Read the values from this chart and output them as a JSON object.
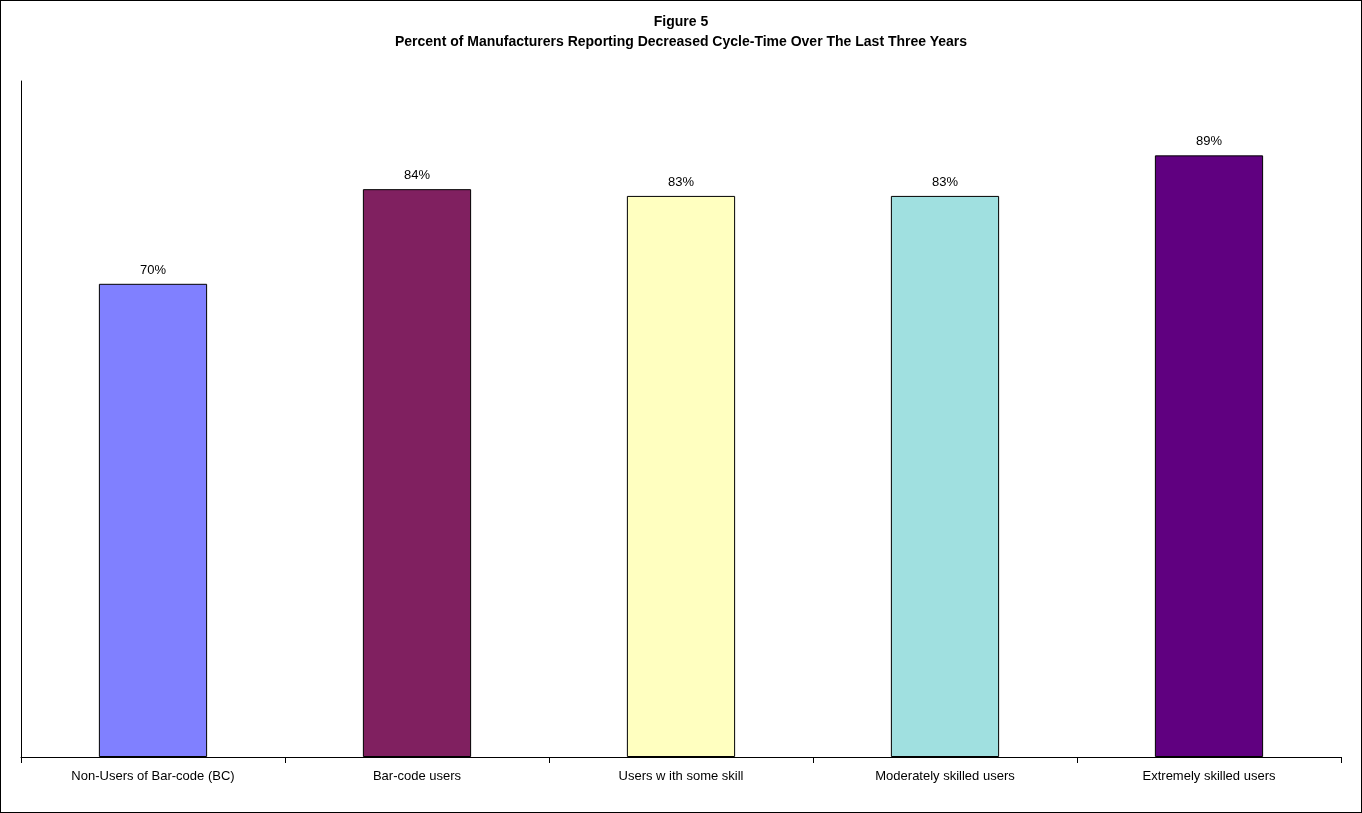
{
  "chart_data": {
    "type": "bar",
    "title": "Figure 5",
    "subtitle": "Percent of Manufacturers Reporting Decreased Cycle-Time Over The Last Three Years",
    "categories": [
      "Non-Users of Bar-code (BC)",
      "Bar-code users",
      "Users w ith some skill",
      "Moderately skilled users",
      "Extremely skilled users"
    ],
    "values": [
      70,
      84,
      83,
      83,
      89
    ],
    "colors": [
      "#8080ff",
      "#802060",
      "#ffffc0",
      "#a0e0e0",
      "#600080"
    ],
    "value_labels": [
      "70%",
      "84%",
      "83%",
      "83%",
      "89%"
    ],
    "ylim": [
      0,
      100
    ],
    "tick_labels": "x"
  }
}
